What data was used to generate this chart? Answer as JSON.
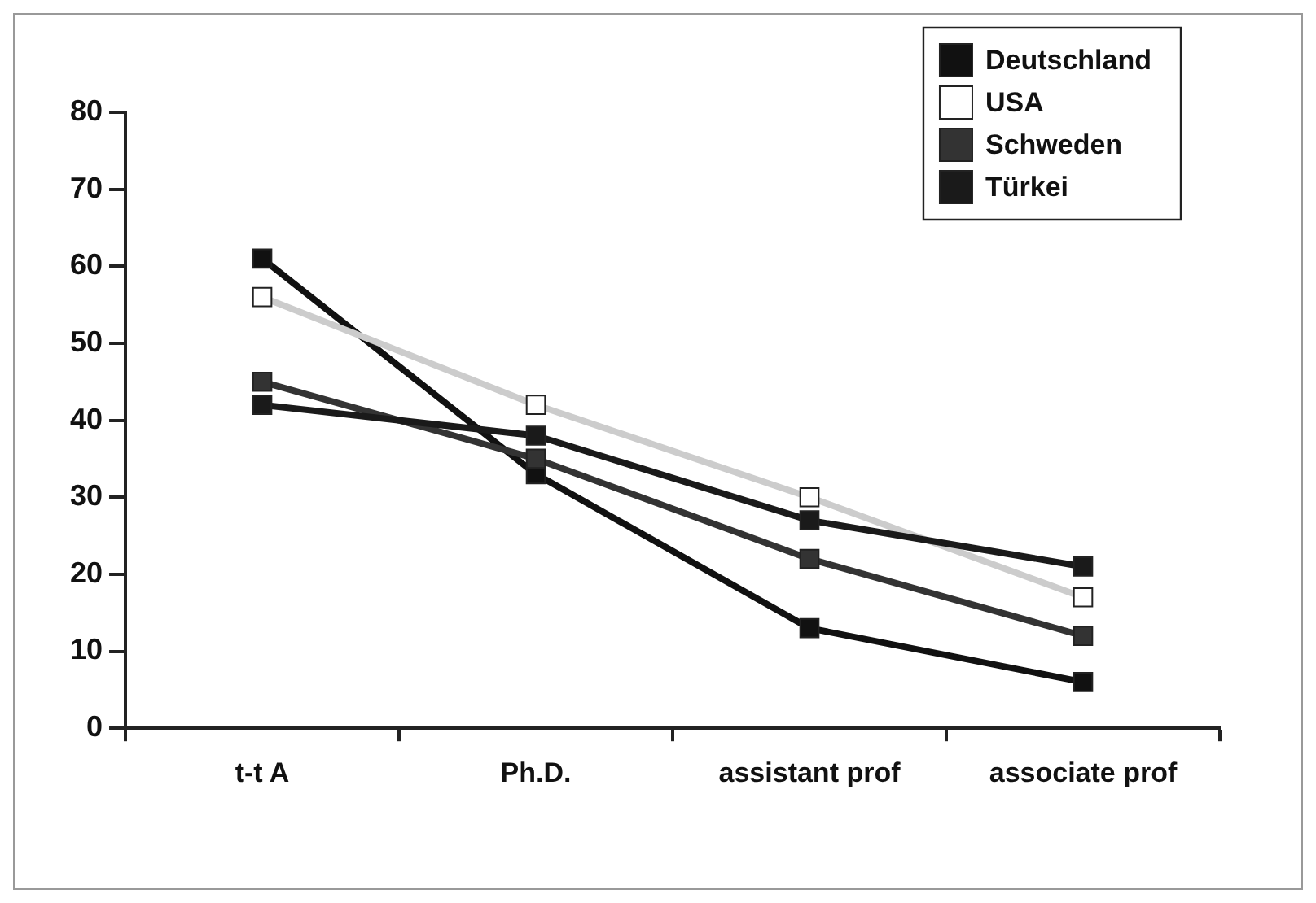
{
  "chart_data": {
    "type": "line",
    "categories": [
      "t-t A",
      "Ph.D.",
      "assistant prof",
      "associate prof"
    ],
    "series": [
      {
        "name": "Deutschland",
        "color": "#111111",
        "values": [
          61,
          33,
          13,
          6
        ]
      },
      {
        "name": "USA",
        "color": "#ffffff",
        "values": [
          56,
          42,
          30,
          17
        ]
      },
      {
        "name": "Schweden",
        "color": "#333333",
        "values": [
          45,
          35,
          22,
          12
        ]
      },
      {
        "name": "Türkei",
        "color": "#1a1a1a",
        "values": [
          42,
          38,
          27,
          21
        ]
      }
    ],
    "ylim": [
      0,
      80
    ],
    "yticks": [
      0,
      10,
      20,
      30,
      40,
      50,
      60,
      70,
      80
    ],
    "grid": false,
    "legend": "top right",
    "marker": "square",
    "line_style": "solid"
  }
}
